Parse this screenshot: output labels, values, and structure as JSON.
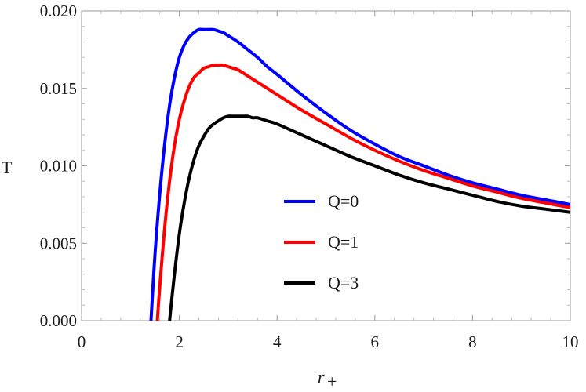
{
  "chart_data": {
    "type": "line",
    "xlabel": "r",
    "xlabel_subscript": "+",
    "ylabel": "T",
    "xlim": [
      0,
      10
    ],
    "ylim": [
      0,
      0.02
    ],
    "x_ticks": [
      0,
      2,
      4,
      6,
      8,
      10
    ],
    "x_tick_labels": [
      "0",
      "2",
      "4",
      "6",
      "8",
      "10"
    ],
    "y_ticks": [
      0,
      0.005,
      0.01,
      0.015,
      0.02
    ],
    "y_tick_labels": [
      "0.000",
      "0.005",
      "0.010",
      "0.015",
      "0.020"
    ],
    "grid": false,
    "legend_position": "center-right",
    "series": [
      {
        "name": "Q=0",
        "color": "#0000ff",
        "x": [
          1.42,
          1.5,
          1.6,
          1.7,
          1.8,
          1.9,
          2.0,
          2.1,
          2.2,
          2.3,
          2.4,
          2.5,
          2.6,
          2.7,
          2.8,
          2.9,
          3.0,
          3.2,
          3.4,
          3.6,
          3.8,
          4.0,
          4.5,
          5.0,
          5.5,
          6.0,
          6.5,
          7.0,
          7.5,
          8.0,
          8.5,
          9.0,
          9.5,
          10.0
        ],
        "y": [
          0.0,
          0.0042,
          0.0082,
          0.0114,
          0.0139,
          0.0157,
          0.017,
          0.0178,
          0.0183,
          0.0186,
          0.0188,
          0.0188,
          0.0188,
          0.0188,
          0.0187,
          0.0186,
          0.0184,
          0.018,
          0.0175,
          0.017,
          0.0164,
          0.0159,
          0.0146,
          0.0134,
          0.0123,
          0.0114,
          0.0106,
          0.01,
          0.0094,
          0.0089,
          0.0085,
          0.0081,
          0.0078,
          0.0075
        ]
      },
      {
        "name": "Q=1",
        "color": "#ff0000",
        "x": [
          1.55,
          1.6,
          1.7,
          1.8,
          1.9,
          2.0,
          2.1,
          2.2,
          2.3,
          2.4,
          2.5,
          2.6,
          2.7,
          2.8,
          2.9,
          3.0,
          3.1,
          3.2,
          3.4,
          3.6,
          3.8,
          4.0,
          4.5,
          5.0,
          5.5,
          6.0,
          6.5,
          7.0,
          7.5,
          8.0,
          8.5,
          9.0,
          9.5,
          10.0
        ],
        "y": [
          0.0,
          0.0022,
          0.006,
          0.009,
          0.0113,
          0.013,
          0.0142,
          0.0151,
          0.0157,
          0.016,
          0.0163,
          0.0164,
          0.0165,
          0.0165,
          0.0165,
          0.0164,
          0.0163,
          0.0162,
          0.0158,
          0.0154,
          0.015,
          0.0146,
          0.0136,
          0.0127,
          0.0118,
          0.011,
          0.0103,
          0.0097,
          0.0092,
          0.0087,
          0.0083,
          0.0079,
          0.0076,
          0.0073
        ]
      },
      {
        "name": "Q=3",
        "color": "#000000",
        "x": [
          1.8,
          1.9,
          2.0,
          2.1,
          2.2,
          2.3,
          2.4,
          2.5,
          2.6,
          2.7,
          2.8,
          2.9,
          3.0,
          3.1,
          3.2,
          3.3,
          3.4,
          3.5,
          3.6,
          3.8,
          4.0,
          4.5,
          5.0,
          5.5,
          6.0,
          6.5,
          7.0,
          7.5,
          8.0,
          8.5,
          9.0,
          9.5,
          10.0
        ],
        "y": [
          0.0,
          0.003,
          0.0056,
          0.0076,
          0.0092,
          0.0104,
          0.0113,
          0.0119,
          0.0124,
          0.0127,
          0.0129,
          0.0131,
          0.0132,
          0.0132,
          0.0132,
          0.0132,
          0.0132,
          0.0131,
          0.0131,
          0.0129,
          0.0127,
          0.012,
          0.0113,
          0.0106,
          0.01,
          0.0094,
          0.0089,
          0.0085,
          0.0081,
          0.0077,
          0.0074,
          0.0072,
          0.007
        ]
      }
    ]
  }
}
